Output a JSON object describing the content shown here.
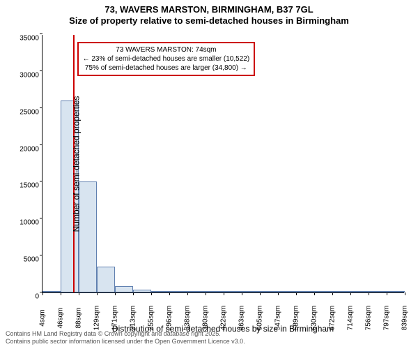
{
  "title": "73, WAVERS MARSTON, BIRMINGHAM, B37 7GL",
  "subtitle": "Size of property relative to semi-detached houses in Birmingham",
  "chart": {
    "type": "histogram",
    "ylabel": "Number of semi-detached properties",
    "xlabel": "Distribution of semi-detached houses by size in Birmingham",
    "ylim": [
      0,
      35000
    ],
    "ytick_step": 5000,
    "yticks": [
      "0",
      "5000",
      "10000",
      "15000",
      "20000",
      "25000",
      "30000",
      "35000"
    ],
    "xticks": [
      "4sqm",
      "46sqm",
      "88sqm",
      "129sqm",
      "171sqm",
      "213sqm",
      "255sqm",
      "296sqm",
      "338sqm",
      "380sqm",
      "422sqm",
      "463sqm",
      "505sqm",
      "547sqm",
      "589sqm",
      "630sqm",
      "672sqm",
      "714sqm",
      "756sqm",
      "797sqm",
      "839sqm"
    ],
    "bar_fill": "#d8e4f0",
    "bar_stroke": "#6080b0",
    "background_color": "#ffffff",
    "values": [
      100,
      26000,
      15000,
      3500,
      900,
      400,
      200,
      130,
      100,
      80,
      60,
      50,
      40,
      30,
      30,
      30,
      20,
      20,
      20,
      20
    ],
    "marker_position_sqm": 74,
    "marker_color": "#cc0000",
    "annotation": {
      "line1": "73 WAVERS MARSTON: 74sqm",
      "line2": "← 23% of semi-detached houses are smaller (10,522)",
      "line3": "75% of semi-detached houses are larger (34,800) →"
    }
  },
  "attribution": {
    "line1": "Contains HM Land Registry data © Crown copyright and database right 2025.",
    "line2": "Contains public sector information licensed under the Open Government Licence v3.0."
  }
}
